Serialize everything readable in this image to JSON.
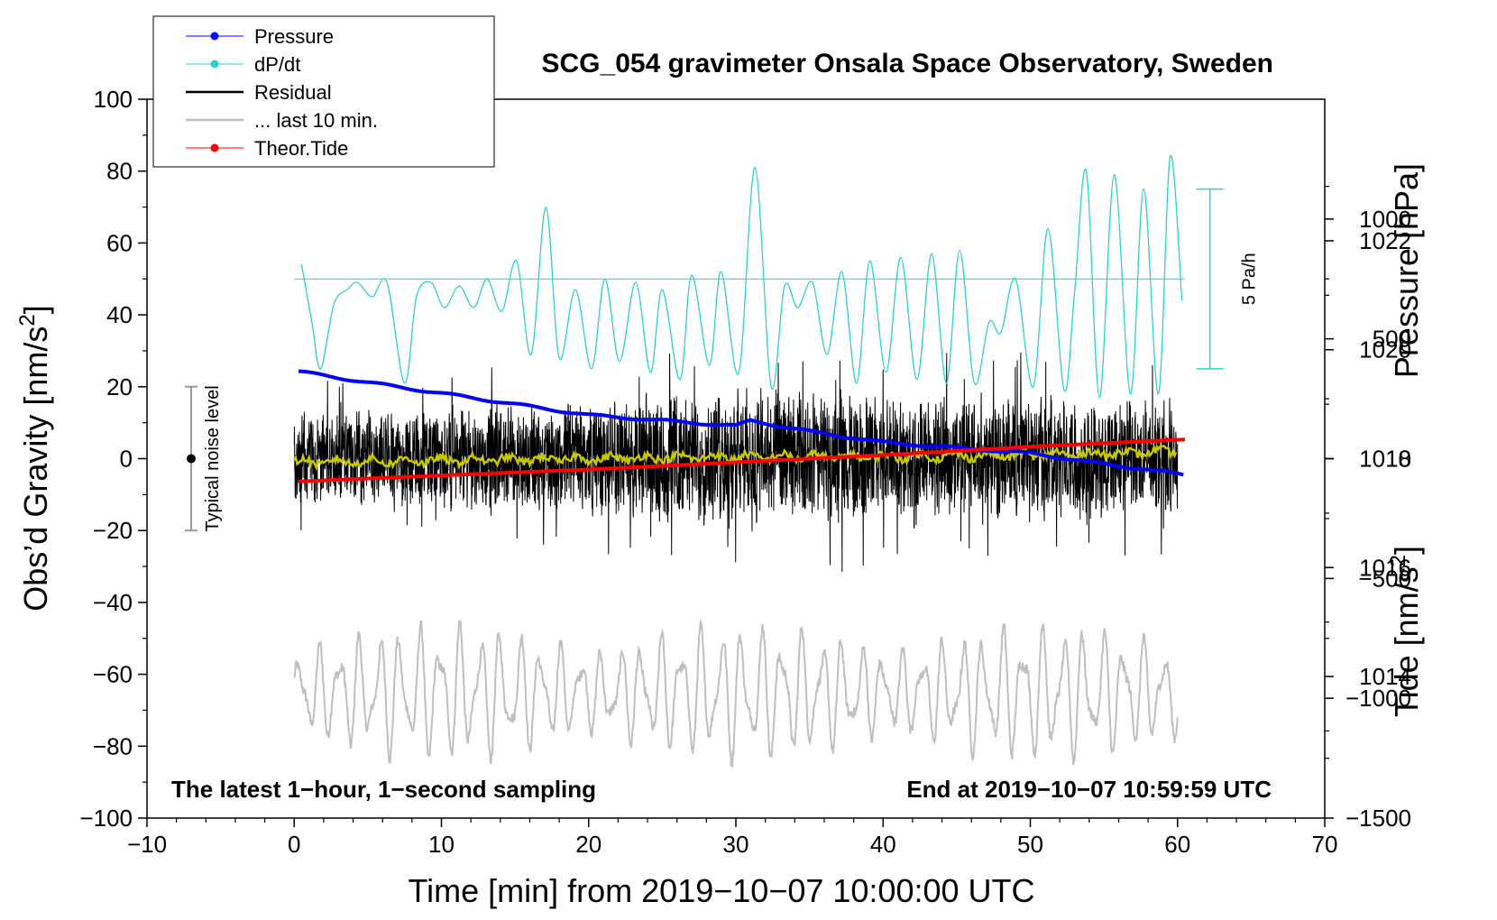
{
  "chart_data": {
    "type": "line",
    "title": "SCG_054 gravimeter Onsala Space Observatory, Sweden",
    "xlabel": "Time [min] from 2019−10−07 10:00:00 UTC",
    "ylabel_left": "Obs’d Gravity [nm/s²]",
    "ylabel_left_main": "Obs’d Gravity [nm/s",
    "ylabel_left_sup": "2",
    "ylabel_left_end": "]",
    "ylabel_right_pressure": "Pressure [hPa]",
    "ylabel_right_tide": "Tide [nm/s²]",
    "ylabel_right_tide_main": "Tide [nm/s",
    "ylabel_right_tide_sup": "2",
    "ylabel_right_tide_end": "]",
    "xlim": [
      -10,
      70
    ],
    "ylim": [
      -100,
      100
    ],
    "pressure_lim": [
      1011.4,
      1024.6
    ],
    "tide_lim": [
      -1500,
      1500
    ],
    "x_ticks": [
      -10,
      0,
      10,
      20,
      30,
      40,
      50,
      60,
      70
    ],
    "x_tick_labels": [
      "−10",
      "0",
      "10",
      "20",
      "30",
      "40",
      "50",
      "60",
      "70"
    ],
    "y_ticks": [
      -100,
      -80,
      -60,
      -40,
      -20,
      0,
      20,
      40,
      60,
      80,
      100
    ],
    "y_tick_labels": [
      "−100",
      "−80",
      "−60",
      "−40",
      "−20",
      "0",
      "20",
      "40",
      "60",
      "80",
      "100"
    ],
    "pressure_ticks": [
      1014,
      1016,
      1018,
      1020,
      1022
    ],
    "pressure_tick_labels": [
      "1014",
      "1016",
      "1018",
      "1020",
      "1022"
    ],
    "tide_ticks": [
      -1500,
      -1000,
      -500,
      0,
      500,
      1000
    ],
    "tide_tick_labels": [
      "−1500",
      "−1000",
      "−500",
      "0",
      "500",
      "1000"
    ],
    "annotations": {
      "bottom_left": "The latest 1−hour, 1−second sampling",
      "bottom_right": "End at 2019−10−07 10:59:59 UTC",
      "noise": "Typical noise level",
      "scale_bar": "5 Pa/h"
    },
    "noise_bar": {
      "x": -7,
      "center": 0,
      "low": -20,
      "high": 20
    },
    "dpdt_scale_bar": {
      "x": 62.2,
      "baseline": 50,
      "half_range": 25,
      "units": "Pa/h",
      "value": 5
    },
    "legend": {
      "position": "top-left",
      "entries": [
        {
          "label": "Pressure",
          "color": "#0000ff",
          "marker": true
        },
        {
          "label": "dP/dt",
          "color": "#30d0d0",
          "marker": true
        },
        {
          "label": "Residual",
          "color": "#000000",
          "marker": false
        },
        {
          "label": "... last 10 min.",
          "color": "#bfbfbf",
          "marker": false
        },
        {
          "label": "Theor.Tide",
          "color": "#ff0000",
          "marker": true
        }
      ]
    },
    "series": [
      {
        "name": "Pressure",
        "axis": "pressure_hPa",
        "color": "#0000ff",
        "x": [
          0.3,
          5,
          10,
          15,
          20,
          25,
          30,
          31,
          35,
          40,
          45,
          50,
          55,
          58,
          60.5
        ],
        "values": [
          1019.6,
          1019.4,
          1019.2,
          1019.0,
          1018.8,
          1018.7,
          1018.6,
          1018.7,
          1018.5,
          1018.3,
          1018.2,
          1018.1,
          1017.9,
          1017.8,
          1017.7
        ]
      },
      {
        "name": "dP/dt",
        "axis": "gravity_units",
        "color": "#30d0d0",
        "x": [
          0.5,
          1.2,
          1.8,
          2.7,
          3.6,
          4.3,
          5.3,
          6.3,
          7.5,
          8.3,
          9.3,
          10.2,
          11.2,
          12.2,
          13.1,
          14.1,
          15.1,
          16.1,
          17.1,
          18.0,
          19.1,
          20.2,
          21.1,
          22.1,
          23.2,
          24.2,
          25.0,
          26.2,
          27.0,
          28.2,
          29.0,
          30.2,
          31.3,
          32.4,
          33.3,
          34.2,
          35.2,
          36.2,
          37.2,
          38.2,
          39.1,
          40.2,
          41.2,
          42.3,
          43.3,
          44.3,
          45.2,
          46.2,
          47.2,
          48.0,
          49.0,
          50.2,
          51.2,
          52.3,
          53.0,
          53.8,
          54.7,
          55.7,
          56.8,
          57.7,
          58.7,
          59.5,
          60.3
        ],
        "values": [
          54,
          38,
          25,
          43,
          47,
          49,
          45,
          49,
          21,
          45,
          49,
          42,
          48,
          42,
          50,
          41,
          55,
          29,
          70,
          28,
          47,
          25,
          50,
          27,
          49,
          24,
          47,
          22,
          51,
          26,
          52,
          24,
          81,
          20,
          48,
          42,
          49,
          29,
          52,
          21,
          55,
          24,
          56,
          22,
          57,
          21,
          58,
          21,
          38,
          35,
          50,
          20,
          64,
          19,
          46,
          80,
          17,
          79,
          18,
          75,
          18,
          84,
          44
        ]
      },
      {
        "name": "Residual",
        "axis": "gravity_units",
        "color": "#000000",
        "x_range": [
          0,
          60
        ],
        "amplitude_envelope": [
          {
            "x": 0,
            "amp": 22
          },
          {
            "x": 10,
            "amp": 24
          },
          {
            "x": 20,
            "amp": 28
          },
          {
            "x": 25,
            "amp": 30
          },
          {
            "x": 30,
            "amp": 32
          },
          {
            "x": 40,
            "amp": 30
          },
          {
            "x": 50,
            "amp": 30
          },
          {
            "x": 60,
            "amp": 26
          }
        ]
      },
      {
        "name": "Residual (smoothed)",
        "axis": "gravity_units",
        "color": "#c8c800",
        "x": [
          0,
          10,
          20,
          30,
          40,
          50,
          60
        ],
        "values": [
          -1,
          -0.5,
          0,
          0.5,
          0.5,
          1,
          2
        ]
      },
      {
        "name": "... last 10 min.",
        "axis": "gravity_units",
        "color": "#bfbfbf",
        "x_range": [
          0,
          60
        ],
        "baseline": -65,
        "amplitude": 15
      },
      {
        "name": "Theor.Tide",
        "axis": "tide_nm_s2",
        "color": "#ff0000",
        "x": [
          0.3,
          10,
          20,
          30,
          40,
          50,
          60.5
        ],
        "values": [
          -95,
          -70,
          -45,
          -15,
          15,
          50,
          80
        ]
      }
    ]
  }
}
